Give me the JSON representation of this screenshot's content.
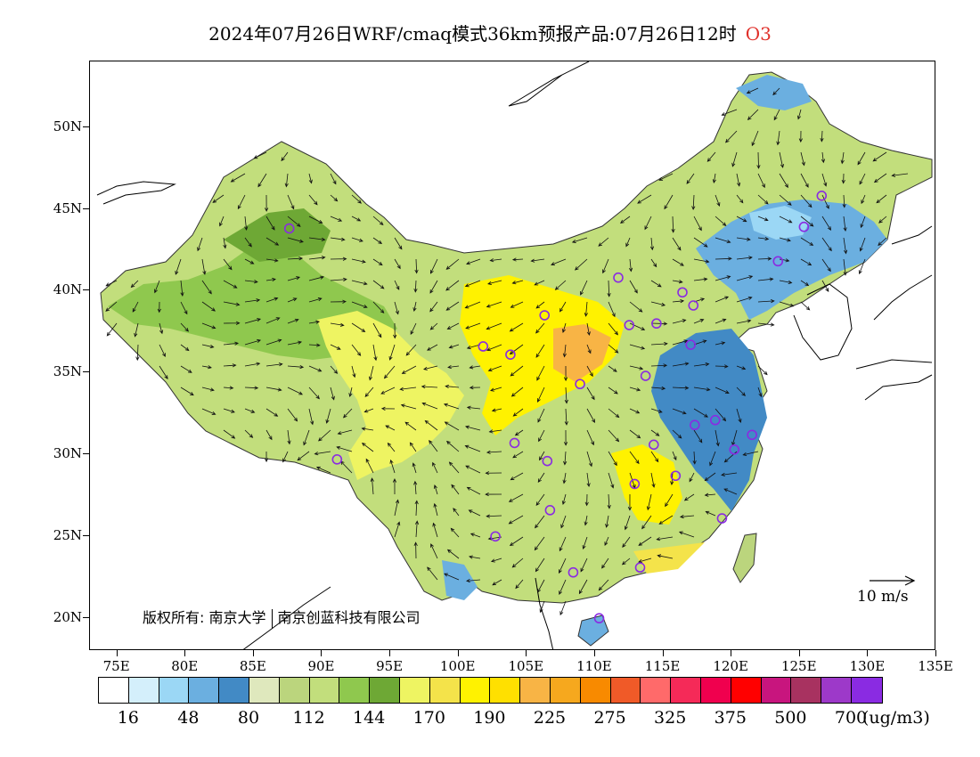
{
  "title": {
    "text": "2024年07月26日WRF/cmaq模式36km预报产品:07月26日12时",
    "variable": "O3",
    "variable_color": "#e0302a"
  },
  "map": {
    "lon_range": [
      73,
      135
    ],
    "lat_range": [
      18,
      54
    ],
    "lat_labels": [
      {
        "lat": 50,
        "text": "50N"
      },
      {
        "lat": 45,
        "text": "45N"
      },
      {
        "lat": 40,
        "text": "40N"
      },
      {
        "lat": 35,
        "text": "35N"
      },
      {
        "lat": 30,
        "text": "30N"
      },
      {
        "lat": 25,
        "text": "25N"
      },
      {
        "lat": 20,
        "text": "20N"
      }
    ],
    "lon_labels": [
      {
        "lon": 75,
        "text": "75E"
      },
      {
        "lon": 80,
        "text": "80E"
      },
      {
        "lon": 85,
        "text": "85E"
      },
      {
        "lon": 90,
        "text": "90E"
      },
      {
        "lon": 95,
        "text": "95E"
      },
      {
        "lon": 100,
        "text": "100E"
      },
      {
        "lon": 105,
        "text": "105E"
      },
      {
        "lon": 110,
        "text": "110E"
      },
      {
        "lon": 115,
        "text": "115E"
      },
      {
        "lon": 120,
        "text": "120E"
      },
      {
        "lon": 125,
        "text": "125E"
      },
      {
        "lon": 130,
        "text": "130E"
      },
      {
        "lon": 135,
        "text": "135E"
      }
    ],
    "copyright": {
      "prefix": "版权所有:",
      "org1": "南京大学",
      "org2": "南京创蓝科技有限公司"
    },
    "wind_reference": "10 m/s",
    "stations": [
      [
        87.6,
        43.8
      ],
      [
        91.1,
        29.7
      ],
      [
        101.8,
        36.6
      ],
      [
        103.8,
        36.1
      ],
      [
        106.3,
        38.5
      ],
      [
        108.9,
        34.3
      ],
      [
        104.1,
        30.7
      ],
      [
        106.5,
        29.6
      ],
      [
        106.7,
        26.6
      ],
      [
        102.7,
        25.0
      ],
      [
        108.4,
        22.8
      ],
      [
        110.3,
        20.0
      ],
      [
        113.3,
        23.1
      ],
      [
        112.9,
        28.2
      ],
      [
        114.3,
        30.6
      ],
      [
        115.9,
        28.7
      ],
      [
        119.3,
        26.1
      ],
      [
        120.2,
        30.3
      ],
      [
        121.5,
        31.2
      ],
      [
        118.8,
        32.1
      ],
      [
        117.3,
        31.8
      ],
      [
        117.0,
        36.7
      ],
      [
        113.7,
        34.8
      ],
      [
        112.5,
        37.9
      ],
      [
        114.5,
        38.0
      ],
      [
        116.4,
        39.9
      ],
      [
        117.2,
        39.1
      ],
      [
        111.7,
        40.8
      ],
      [
        123.4,
        41.8
      ],
      [
        125.3,
        43.9
      ],
      [
        126.6,
        45.8
      ]
    ]
  },
  "legend": {
    "colors": [
      "#ffffff",
      "#d4effb",
      "#9bd7f5",
      "#6bafe0",
      "#428ac5",
      "#dfe8bd",
      "#bbd57d",
      "#c2de7c",
      "#8fc84e",
      "#6ea835",
      "#eef462",
      "#f4e34a",
      "#fff200",
      "#ffe000",
      "#f8b445",
      "#f6a81e",
      "#f88a00",
      "#f05a28",
      "#ff6a6a",
      "#f52a58",
      "#f0004e",
      "#ff0000",
      "#c8157e",
      "#a83260",
      "#9d39c9",
      "#8a2be2"
    ],
    "labels": [
      {
        "i": 1,
        "text": "16"
      },
      {
        "i": 3,
        "text": "48"
      },
      {
        "i": 5,
        "text": "80"
      },
      {
        "i": 7,
        "text": "112"
      },
      {
        "i": 9,
        "text": "144"
      },
      {
        "i": 11,
        "text": "170"
      },
      {
        "i": 13,
        "text": "190"
      },
      {
        "i": 15,
        "text": "225"
      },
      {
        "i": 17,
        "text": "275"
      },
      {
        "i": 19,
        "text": "325"
      },
      {
        "i": 21,
        "text": "375"
      },
      {
        "i": 23,
        "text": "500"
      },
      {
        "i": 25,
        "text": "700"
      }
    ],
    "unit": "(ug/m3)"
  }
}
